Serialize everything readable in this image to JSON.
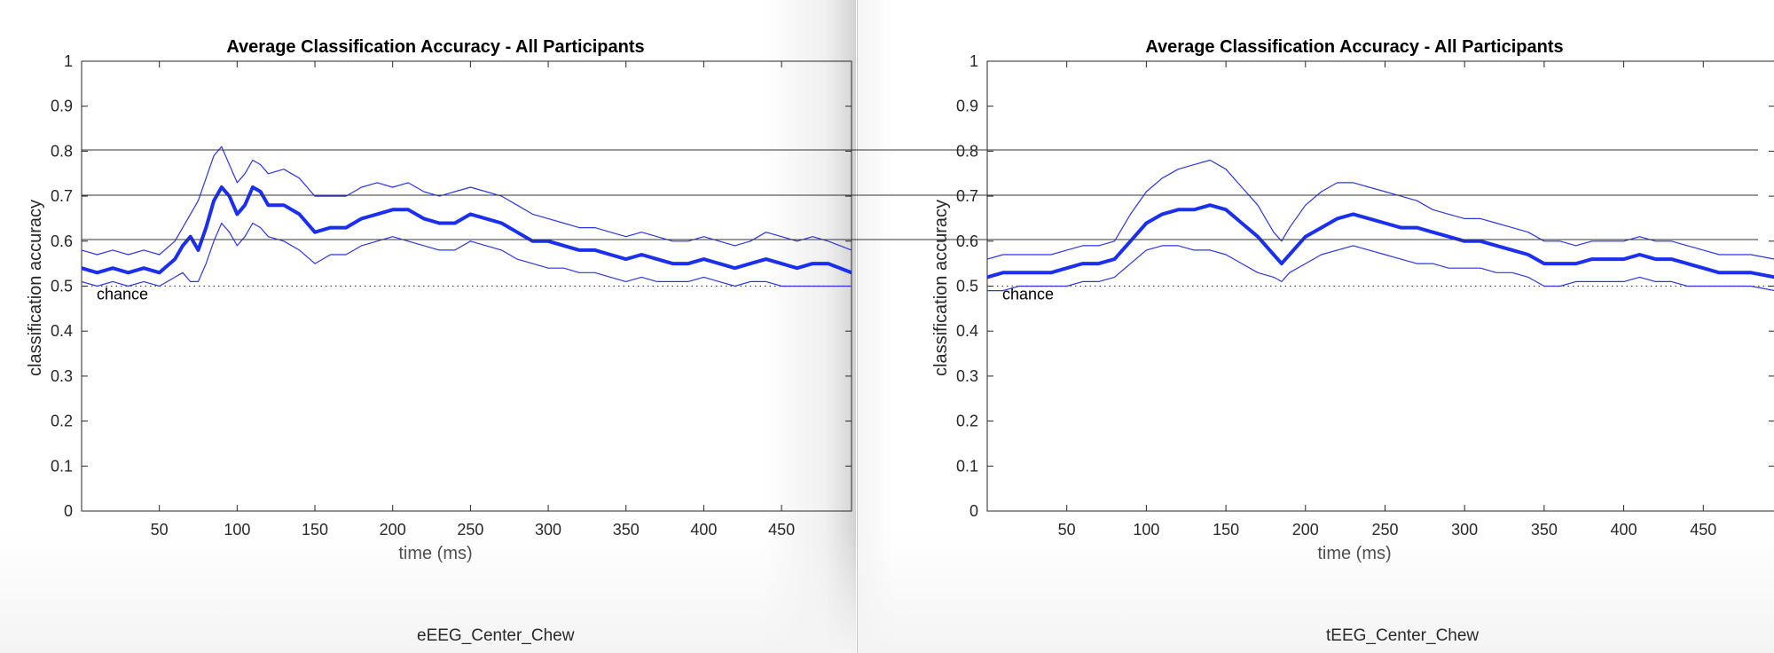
{
  "windows": [
    {
      "caption": "eEEG_Center_Chew"
    },
    {
      "caption": "tEEG_Center_Chew"
    }
  ],
  "chart_data": [
    {
      "type": "line",
      "title": "Average Classification Accuracy - All Participants",
      "xlabel": "time (ms)",
      "ylabel": "classification accuracy",
      "xlim": [
        0,
        495
      ],
      "ylim": [
        0,
        1
      ],
      "xticks": [
        50,
        100,
        150,
        200,
        250,
        300,
        350,
        400,
        450
      ],
      "yticks": [
        0,
        0.1,
        0.2,
        0.3,
        0.4,
        0.5,
        0.6,
        0.7,
        0.8,
        0.9,
        1
      ],
      "ytick_labels": [
        "0",
        "0.1",
        "0.2",
        "0.3",
        "0.4",
        "0.5",
        "0.6",
        "0.7",
        "0.8",
        "0.9",
        "1"
      ],
      "grid": false,
      "chance": {
        "y": 0.5,
        "label": "chance"
      },
      "series": [
        {
          "role": "mean",
          "x": [
            0,
            10,
            20,
            30,
            40,
            50,
            60,
            65,
            70,
            75,
            80,
            85,
            90,
            95,
            100,
            105,
            110,
            115,
            120,
            130,
            140,
            150,
            160,
            170,
            180,
            190,
            200,
            210,
            220,
            230,
            240,
            250,
            260,
            270,
            280,
            290,
            300,
            310,
            320,
            330,
            340,
            350,
            360,
            370,
            380,
            390,
            400,
            410,
            420,
            430,
            440,
            450,
            460,
            470,
            480,
            495
          ],
          "y": [
            0.54,
            0.53,
            0.54,
            0.53,
            0.54,
            0.53,
            0.56,
            0.59,
            0.61,
            0.58,
            0.63,
            0.69,
            0.72,
            0.7,
            0.66,
            0.68,
            0.72,
            0.71,
            0.68,
            0.68,
            0.66,
            0.62,
            0.63,
            0.63,
            0.65,
            0.66,
            0.67,
            0.67,
            0.65,
            0.64,
            0.64,
            0.66,
            0.65,
            0.64,
            0.62,
            0.6,
            0.6,
            0.59,
            0.58,
            0.58,
            0.57,
            0.56,
            0.57,
            0.56,
            0.55,
            0.55,
            0.56,
            0.55,
            0.54,
            0.55,
            0.56,
            0.55,
            0.54,
            0.55,
            0.55,
            0.53
          ]
        },
        {
          "role": "upper",
          "x": [
            0,
            10,
            20,
            30,
            40,
            50,
            60,
            65,
            70,
            75,
            80,
            85,
            90,
            95,
            100,
            105,
            110,
            115,
            120,
            130,
            140,
            150,
            160,
            170,
            180,
            190,
            200,
            210,
            220,
            230,
            240,
            250,
            260,
            270,
            280,
            290,
            300,
            310,
            320,
            330,
            340,
            350,
            360,
            370,
            380,
            390,
            400,
            410,
            420,
            430,
            440,
            450,
            460,
            470,
            480,
            495
          ],
          "y": [
            0.58,
            0.57,
            0.58,
            0.57,
            0.58,
            0.57,
            0.6,
            0.63,
            0.66,
            0.69,
            0.74,
            0.79,
            0.81,
            0.77,
            0.73,
            0.75,
            0.78,
            0.77,
            0.75,
            0.76,
            0.74,
            0.7,
            0.7,
            0.7,
            0.72,
            0.73,
            0.72,
            0.73,
            0.71,
            0.7,
            0.71,
            0.72,
            0.71,
            0.7,
            0.68,
            0.66,
            0.65,
            0.64,
            0.63,
            0.63,
            0.62,
            0.61,
            0.62,
            0.61,
            0.6,
            0.6,
            0.61,
            0.6,
            0.59,
            0.6,
            0.62,
            0.61,
            0.6,
            0.61,
            0.6,
            0.58
          ]
        },
        {
          "role": "lower",
          "x": [
            0,
            10,
            20,
            30,
            40,
            50,
            60,
            65,
            70,
            75,
            80,
            85,
            90,
            95,
            100,
            105,
            110,
            115,
            120,
            130,
            140,
            150,
            160,
            170,
            180,
            190,
            200,
            210,
            220,
            230,
            240,
            250,
            260,
            270,
            280,
            290,
            300,
            310,
            320,
            330,
            340,
            350,
            360,
            370,
            380,
            390,
            400,
            410,
            420,
            430,
            440,
            450,
            460,
            470,
            480,
            495
          ],
          "y": [
            0.51,
            0.5,
            0.51,
            0.5,
            0.51,
            0.5,
            0.52,
            0.53,
            0.51,
            0.51,
            0.55,
            0.6,
            0.64,
            0.62,
            0.59,
            0.61,
            0.64,
            0.63,
            0.61,
            0.6,
            0.58,
            0.55,
            0.57,
            0.57,
            0.59,
            0.6,
            0.61,
            0.6,
            0.59,
            0.58,
            0.58,
            0.6,
            0.59,
            0.58,
            0.56,
            0.55,
            0.54,
            0.54,
            0.53,
            0.53,
            0.52,
            0.51,
            0.52,
            0.51,
            0.51,
            0.51,
            0.52,
            0.51,
            0.5,
            0.51,
            0.51,
            0.5,
            0.5,
            0.5,
            0.5,
            0.5
          ]
        }
      ]
    },
    {
      "type": "line",
      "title": "Average Classification Accuracy - All Participants",
      "xlabel": "time (ms)",
      "ylabel": "classification accuracy",
      "xlim": [
        0,
        495
      ],
      "ylim": [
        0,
        1
      ],
      "xticks": [
        50,
        100,
        150,
        200,
        250,
        300,
        350,
        400,
        450
      ],
      "yticks": [
        0,
        0.1,
        0.2,
        0.3,
        0.4,
        0.5,
        0.6,
        0.7,
        0.8,
        0.9,
        1
      ],
      "ytick_labels": [
        "0",
        "0.1",
        "0.2",
        "0.3",
        "0.4",
        "0.5",
        "0.6",
        "0.7",
        "0.8",
        "0.9",
        "1"
      ],
      "grid": false,
      "chance": {
        "y": 0.5,
        "label": "chance"
      },
      "series": [
        {
          "role": "mean",
          "x": [
            0,
            10,
            20,
            30,
            40,
            50,
            60,
            70,
            80,
            90,
            100,
            110,
            120,
            130,
            140,
            150,
            160,
            170,
            180,
            185,
            190,
            200,
            210,
            220,
            230,
            240,
            250,
            260,
            270,
            280,
            290,
            300,
            310,
            320,
            330,
            340,
            350,
            360,
            370,
            380,
            390,
            400,
            410,
            420,
            430,
            440,
            450,
            460,
            470,
            480,
            495
          ],
          "y": [
            0.52,
            0.53,
            0.53,
            0.53,
            0.53,
            0.54,
            0.55,
            0.55,
            0.56,
            0.6,
            0.64,
            0.66,
            0.67,
            0.67,
            0.68,
            0.67,
            0.64,
            0.61,
            0.57,
            0.55,
            0.57,
            0.61,
            0.63,
            0.65,
            0.66,
            0.65,
            0.64,
            0.63,
            0.63,
            0.62,
            0.61,
            0.6,
            0.6,
            0.59,
            0.58,
            0.57,
            0.55,
            0.55,
            0.55,
            0.56,
            0.56,
            0.56,
            0.57,
            0.56,
            0.56,
            0.55,
            0.54,
            0.53,
            0.53,
            0.53,
            0.52
          ]
        },
        {
          "role": "upper",
          "x": [
            0,
            10,
            20,
            30,
            40,
            50,
            60,
            70,
            80,
            90,
            100,
            110,
            120,
            130,
            140,
            150,
            160,
            170,
            180,
            185,
            190,
            200,
            210,
            220,
            230,
            240,
            250,
            260,
            270,
            280,
            290,
            300,
            310,
            320,
            330,
            340,
            350,
            360,
            370,
            380,
            390,
            400,
            410,
            420,
            430,
            440,
            450,
            460,
            470,
            480,
            495
          ],
          "y": [
            0.56,
            0.57,
            0.57,
            0.57,
            0.57,
            0.58,
            0.59,
            0.59,
            0.6,
            0.66,
            0.71,
            0.74,
            0.76,
            0.77,
            0.78,
            0.76,
            0.72,
            0.68,
            0.62,
            0.6,
            0.63,
            0.68,
            0.71,
            0.73,
            0.73,
            0.72,
            0.71,
            0.7,
            0.69,
            0.67,
            0.66,
            0.65,
            0.65,
            0.64,
            0.63,
            0.62,
            0.6,
            0.6,
            0.59,
            0.6,
            0.6,
            0.6,
            0.61,
            0.6,
            0.6,
            0.59,
            0.58,
            0.57,
            0.57,
            0.57,
            0.56
          ]
        },
        {
          "role": "lower",
          "x": [
            0,
            10,
            20,
            30,
            40,
            50,
            60,
            70,
            80,
            90,
            100,
            110,
            120,
            130,
            140,
            150,
            160,
            170,
            180,
            185,
            190,
            200,
            210,
            220,
            230,
            240,
            250,
            260,
            270,
            280,
            290,
            300,
            310,
            320,
            330,
            340,
            350,
            360,
            370,
            380,
            390,
            400,
            410,
            420,
            430,
            440,
            450,
            460,
            470,
            480,
            495
          ],
          "y": [
            0.49,
            0.49,
            0.5,
            0.5,
            0.5,
            0.5,
            0.51,
            0.51,
            0.52,
            0.55,
            0.58,
            0.59,
            0.59,
            0.58,
            0.58,
            0.57,
            0.55,
            0.53,
            0.52,
            0.51,
            0.53,
            0.55,
            0.57,
            0.58,
            0.59,
            0.58,
            0.57,
            0.56,
            0.55,
            0.55,
            0.54,
            0.54,
            0.54,
            0.53,
            0.53,
            0.52,
            0.5,
            0.5,
            0.51,
            0.51,
            0.51,
            0.51,
            0.52,
            0.51,
            0.51,
            0.5,
            0.5,
            0.5,
            0.5,
            0.5,
            0.49
          ]
        }
      ]
    }
  ]
}
